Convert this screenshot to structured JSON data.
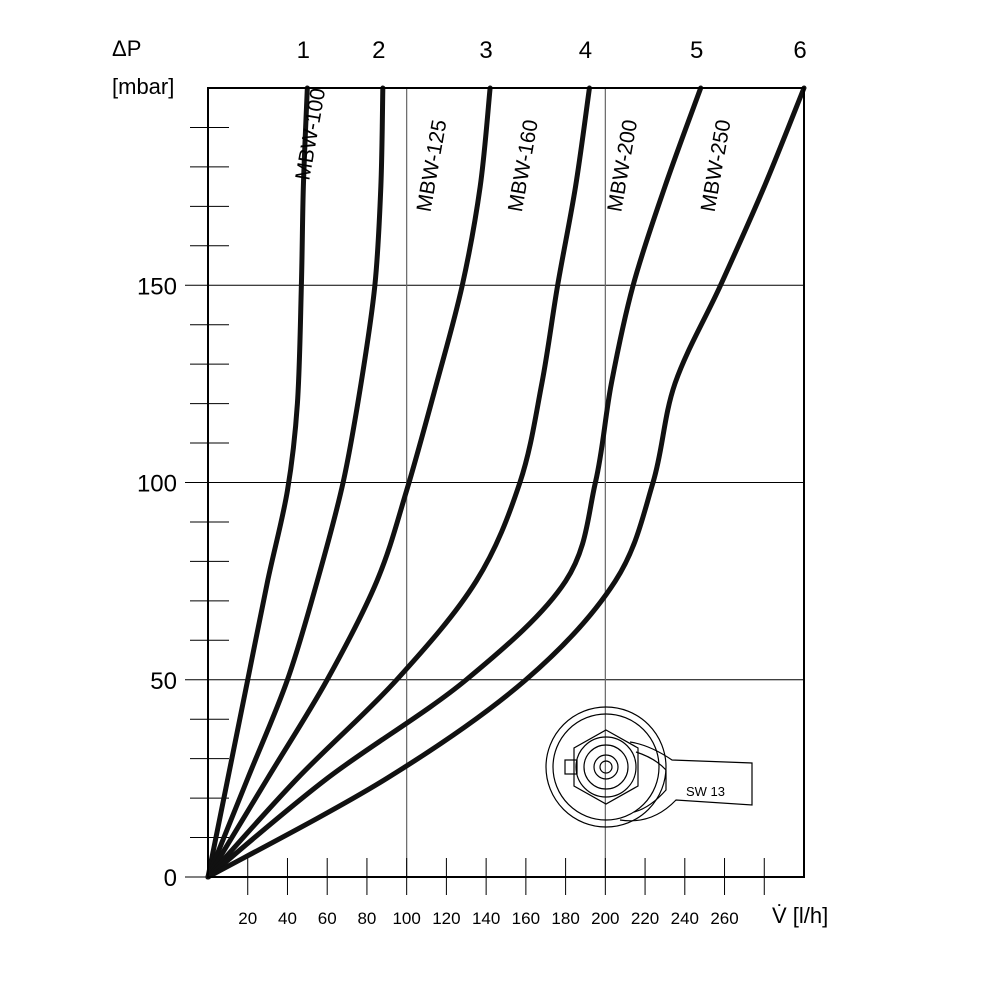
{
  "chart_data": {
    "type": "line",
    "title": "",
    "xlabel": "V̇ [l/h]",
    "ylabel_line1": "ΔP",
    "ylabel_line2": "[mbar]",
    "xlim": [
      0,
      300
    ],
    "ylim": [
      0,
      200
    ],
    "y_major_ticks": [
      0,
      50,
      100,
      150
    ],
    "y_major_tick_labels": [
      "0",
      "50",
      "100",
      "150"
    ],
    "y_minor_step": 10,
    "x_ticks": [
      20,
      40,
      60,
      80,
      100,
      120,
      140,
      160,
      180,
      200,
      220,
      240,
      260,
      280
    ],
    "x_tick_labels": [
      "20",
      "40",
      "60",
      "80",
      "100",
      "120",
      "140",
      "160",
      "180",
      "200",
      "220",
      "240",
      "260"
    ],
    "x_vertical_gridlines": [
      100,
      200
    ],
    "grid": true,
    "series": [
      {
        "number": "1",
        "name": "MBW-100",
        "points": [
          [
            0,
            0
          ],
          [
            10,
            25
          ],
          [
            20,
            50
          ],
          [
            30,
            75
          ],
          [
            40,
            98
          ],
          [
            45,
            120
          ],
          [
            47,
            150
          ],
          [
            48,
            175
          ],
          [
            50,
            200
          ]
        ]
      },
      {
        "number": "2",
        "name": "MBW-125",
        "points": [
          [
            0,
            0
          ],
          [
            20,
            25
          ],
          [
            40,
            50
          ],
          [
            55,
            75
          ],
          [
            68,
            100
          ],
          [
            77,
            125
          ],
          [
            84,
            150
          ],
          [
            87,
            175
          ],
          [
            88,
            200
          ]
        ]
      },
      {
        "number": "3",
        "name": "MBW-125",
        "points": [
          [
            0,
            0
          ],
          [
            30,
            25
          ],
          [
            60,
            50
          ],
          [
            85,
            75
          ],
          [
            100,
            98
          ],
          [
            115,
            125
          ],
          [
            128,
            150
          ],
          [
            137,
            175
          ],
          [
            142,
            200
          ]
        ]
      },
      {
        "number": "4",
        "name": "MBW-160",
        "points": [
          [
            0,
            0
          ],
          [
            45,
            25
          ],
          [
            95,
            50
          ],
          [
            135,
            75
          ],
          [
            157,
            100
          ],
          [
            168,
            125
          ],
          [
            176,
            150
          ],
          [
            185,
            175
          ],
          [
            192,
            200
          ]
        ]
      },
      {
        "number": "5",
        "name": "MBW-200",
        "points": [
          [
            0,
            0
          ],
          [
            60,
            25
          ],
          [
            130,
            50
          ],
          [
            180,
            75
          ],
          [
            195,
            100
          ],
          [
            203,
            125
          ],
          [
            214,
            150
          ],
          [
            230,
            175
          ],
          [
            248,
            200
          ]
        ]
      },
      {
        "number": "6",
        "name": "MBW-250",
        "points": [
          [
            0,
            0
          ],
          [
            90,
            25
          ],
          [
            160,
            50
          ],
          [
            205,
            75
          ],
          [
            224,
            100
          ],
          [
            235,
            125
          ],
          [
            258,
            150
          ],
          [
            280,
            175
          ],
          [
            300,
            200
          ]
        ]
      }
    ],
    "inset": {
      "label": "SW 13"
    }
  }
}
